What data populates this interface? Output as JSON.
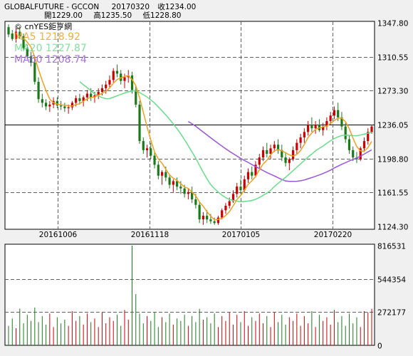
{
  "header": {
    "symbol": "GLOBALFUTURE - GCCON",
    "date": "20170320",
    "close": "收1234.00",
    "open": "開1229.00",
    "high": "高1235.50",
    "low": "低1228.80"
  },
  "watermark": "© cnYES鉅亨網",
  "legend": {
    "ma5": "MA5 1218.92",
    "ma20": "MA20 1227.87",
    "ma60": "MA60 1208.74"
  },
  "colors": {
    "up": "#cc0000",
    "down": "#1a7a1a",
    "ma5": "#f0a020",
    "ma20": "#66dd88",
    "ma60": "#9955dd",
    "panel_bg": "#ffffff",
    "grid": "#606060"
  },
  "chart_data": [
    {
      "type": "candlestick",
      "y_ticks": [
        "1347.80",
        "1310.55",
        "1273.30",
        "1236.05",
        "1198.80",
        "1161.55",
        "1124.30"
      ],
      "ylim": [
        1124.3,
        1347.8
      ],
      "x_ticks": [
        "20161006",
        "20161118",
        "20170105",
        "20170220"
      ],
      "reference_line": 1236.05,
      "series": [
        {
          "name": "MA5",
          "last": 1218.92
        },
        {
          "name": "MA20",
          "last": 1227.87
        },
        {
          "name": "MA60",
          "last": 1208.74
        }
      ],
      "ohlc_approx": [
        [
          1343,
          1346,
          1332,
          1335
        ],
        [
          1336,
          1340,
          1328,
          1330
        ],
        [
          1330,
          1342,
          1326,
          1338
        ],
        [
          1338,
          1344,
          1330,
          1333
        ],
        [
          1333,
          1336,
          1318,
          1320
        ],
        [
          1320,
          1324,
          1308,
          1311
        ],
        [
          1311,
          1316,
          1300,
          1304
        ],
        [
          1304,
          1308,
          1280,
          1283
        ],
        [
          1283,
          1288,
          1260,
          1264
        ],
        [
          1264,
          1270,
          1255,
          1260
        ],
        [
          1260,
          1264,
          1252,
          1256
        ],
        [
          1256,
          1262,
          1250,
          1258
        ],
        [
          1258,
          1266,
          1254,
          1262
        ],
        [
          1262,
          1266,
          1254,
          1257
        ],
        [
          1257,
          1262,
          1252,
          1256
        ],
        [
          1256,
          1260,
          1250,
          1254
        ],
        [
          1254,
          1258,
          1248,
          1255
        ],
        [
          1255,
          1262,
          1252,
          1260
        ],
        [
          1260,
          1268,
          1256,
          1265
        ],
        [
          1265,
          1270,
          1258,
          1262
        ],
        [
          1262,
          1268,
          1256,
          1266
        ],
        [
          1266,
          1274,
          1262,
          1270
        ],
        [
          1270,
          1276,
          1262,
          1266
        ],
        [
          1266,
          1272,
          1260,
          1268
        ],
        [
          1268,
          1276,
          1264,
          1272
        ],
        [
          1272,
          1280,
          1268,
          1276
        ],
        [
          1276,
          1284,
          1270,
          1280
        ],
        [
          1280,
          1290,
          1276,
          1285
        ],
        [
          1285,
          1298,
          1282,
          1295
        ],
        [
          1295,
          1302,
          1288,
          1292
        ],
        [
          1292,
          1296,
          1280,
          1284
        ],
        [
          1284,
          1292,
          1276,
          1288
        ],
        [
          1288,
          1296,
          1282,
          1290
        ],
        [
          1290,
          1294,
          1270,
          1274
        ],
        [
          1274,
          1278,
          1255,
          1258
        ],
        [
          1258,
          1262,
          1215,
          1218
        ],
        [
          1218,
          1222,
          1204,
          1208
        ],
        [
          1208,
          1214,
          1200,
          1210
        ],
        [
          1210,
          1216,
          1198,
          1202
        ],
        [
          1202,
          1206,
          1188,
          1192
        ],
        [
          1192,
          1196,
          1176,
          1180
        ],
        [
          1180,
          1186,
          1170,
          1184
        ],
        [
          1184,
          1190,
          1174,
          1178
        ],
        [
          1178,
          1182,
          1166,
          1170
        ],
        [
          1170,
          1176,
          1162,
          1174
        ],
        [
          1174,
          1178,
          1164,
          1168
        ],
        [
          1168,
          1174,
          1160,
          1166
        ],
        [
          1166,
          1170,
          1156,
          1160
        ],
        [
          1160,
          1166,
          1154,
          1162
        ],
        [
          1162,
          1168,
          1150,
          1154
        ],
        [
          1154,
          1160,
          1144,
          1148
        ],
        [
          1148,
          1152,
          1128,
          1132
        ],
        [
          1132,
          1140,
          1126,
          1136
        ],
        [
          1136,
          1142,
          1128,
          1132
        ],
        [
          1132,
          1138,
          1127,
          1130
        ],
        [
          1130,
          1134,
          1126,
          1128
        ],
        [
          1128,
          1136,
          1126,
          1134
        ],
        [
          1134,
          1144,
          1132,
          1142
        ],
        [
          1142,
          1150,
          1138,
          1147
        ],
        [
          1147,
          1156,
          1144,
          1152
        ],
        [
          1152,
          1164,
          1150,
          1160
        ],
        [
          1160,
          1172,
          1156,
          1168
        ],
        [
          1168,
          1176,
          1160,
          1164
        ],
        [
          1164,
          1180,
          1162,
          1176
        ],
        [
          1176,
          1188,
          1172,
          1184
        ],
        [
          1184,
          1190,
          1176,
          1180
        ],
        [
          1180,
          1196,
          1178,
          1192
        ],
        [
          1192,
          1204,
          1188,
          1200
        ],
        [
          1200,
          1212,
          1196,
          1208
        ],
        [
          1208,
          1216,
          1200,
          1204
        ],
        [
          1204,
          1214,
          1198,
          1210
        ],
        [
          1210,
          1218,
          1206,
          1214
        ],
        [
          1214,
          1220,
          1204,
          1208
        ],
        [
          1208,
          1214,
          1196,
          1200
        ],
        [
          1200,
          1206,
          1190,
          1194
        ],
        [
          1194,
          1200,
          1186,
          1198
        ],
        [
          1198,
          1212,
          1196,
          1208
        ],
        [
          1208,
          1220,
          1204,
          1216
        ],
        [
          1216,
          1226,
          1210,
          1222
        ],
        [
          1222,
          1232,
          1216,
          1228
        ],
        [
          1228,
          1240,
          1224,
          1236
        ],
        [
          1236,
          1244,
          1228,
          1232
        ],
        [
          1232,
          1240,
          1226,
          1236
        ],
        [
          1236,
          1242,
          1228,
          1230
        ],
        [
          1230,
          1238,
          1224,
          1234
        ],
        [
          1234,
          1244,
          1230,
          1240
        ],
        [
          1240,
          1250,
          1236,
          1246
        ],
        [
          1246,
          1256,
          1242,
          1252
        ],
        [
          1252,
          1260,
          1240,
          1244
        ],
        [
          1244,
          1250,
          1230,
          1234
        ],
        [
          1234,
          1238,
          1216,
          1220
        ],
        [
          1220,
          1224,
          1204,
          1208
        ],
        [
          1208,
          1212,
          1196,
          1200
        ],
        [
          1200,
          1206,
          1194,
          1198
        ],
        [
          1198,
          1212,
          1196,
          1210
        ],
        [
          1210,
          1222,
          1206,
          1218
        ],
        [
          1218,
          1232,
          1214,
          1228
        ],
        [
          1228,
          1236,
          1226,
          1234
        ]
      ]
    },
    {
      "type": "bar",
      "name": "volume",
      "y_ticks": [
        "816531",
        "544354",
        "272177",
        "0"
      ],
      "ylim": [
        0,
        816531
      ],
      "values_approx": [
        160000,
        220000,
        140000,
        300000,
        180000,
        250000,
        200000,
        310000,
        190000,
        240000,
        170000,
        260000,
        150000,
        230000,
        180000,
        210000,
        160000,
        280000,
        200000,
        240000,
        170000,
        260000,
        190000,
        220000,
        150000,
        270000,
        180000,
        230000,
        200000,
        250000,
        160000,
        290000,
        210000,
        816531,
        420000,
        260000,
        180000,
        240000,
        200000,
        270000,
        150000,
        230000,
        190000,
        260000,
        170000,
        220000,
        200000,
        250000,
        160000,
        240000,
        190000,
        300000,
        210000,
        230000,
        180000,
        260000,
        150000,
        240000,
        200000,
        270000,
        170000,
        250000,
        190000,
        280000,
        160000,
        230000,
        200000,
        260000,
        180000,
        240000,
        150000,
        270000,
        190000,
        250000,
        170000,
        230000,
        200000,
        260000,
        160000,
        240000,
        180000,
        280000,
        150000,
        250000,
        200000,
        230000,
        170000,
        290000,
        190000,
        240000,
        160000,
        260000,
        180000,
        230000,
        150000,
        280000,
        270000,
        300000
      ]
    }
  ]
}
